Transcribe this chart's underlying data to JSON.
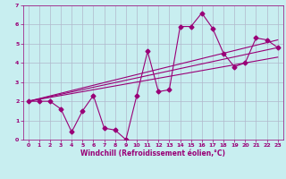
{
  "title": "",
  "xlabel": "Windchill (Refroidissement éolien,°C)",
  "ylabel": "",
  "bg_color": "#c8eef0",
  "grid_color": "#b0b8cc",
  "line_color": "#990077",
  "xlim": [
    -0.5,
    23.5
  ],
  "ylim": [
    0,
    7
  ],
  "xticks": [
    0,
    1,
    2,
    3,
    4,
    5,
    6,
    7,
    8,
    9,
    10,
    11,
    12,
    13,
    14,
    15,
    16,
    17,
    18,
    19,
    20,
    21,
    22,
    23
  ],
  "yticks": [
    0,
    1,
    2,
    3,
    4,
    5,
    6,
    7
  ],
  "series1_x": [
    0,
    1,
    2,
    3,
    4,
    5,
    6,
    7,
    8,
    9,
    10,
    11,
    12,
    13,
    14,
    15,
    16,
    17,
    18,
    19,
    20,
    21,
    22,
    23
  ],
  "series1_y": [
    2.0,
    2.0,
    2.0,
    1.6,
    0.4,
    1.5,
    2.3,
    0.6,
    0.5,
    0.0,
    2.3,
    4.6,
    2.5,
    2.6,
    5.9,
    5.9,
    6.6,
    5.8,
    4.5,
    3.8,
    4.0,
    5.3,
    5.2,
    4.8
  ],
  "series2_x": [
    0,
    23
  ],
  "series2_y": [
    2.0,
    4.3
  ],
  "series3_x": [
    0,
    23
  ],
  "series3_y": [
    2.0,
    5.2
  ],
  "series4_x": [
    0,
    23
  ],
  "series4_y": [
    2.0,
    4.8
  ]
}
